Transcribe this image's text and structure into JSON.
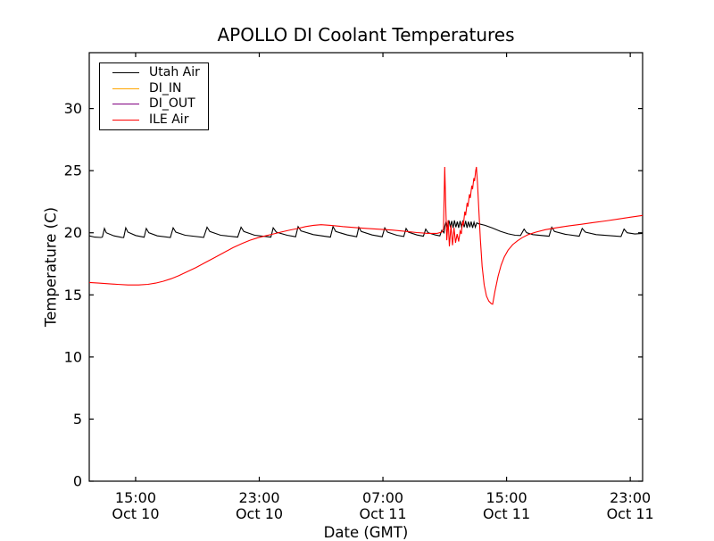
{
  "chart_data": {
    "type": "line",
    "title": "APOLLO DI Coolant Temperatures",
    "xlabel": "Date (GMT)",
    "ylabel": "Temperature (C)",
    "grid": false,
    "legend_position": "upper left",
    "background_color": "#ffffff",
    "axis_color": "#000000",
    "ylim": [
      0,
      34.5
    ],
    "y_ticks": [
      0,
      5,
      10,
      15,
      20,
      25,
      30
    ],
    "xlim_hours": [
      0,
      35.8
    ],
    "x_ticks": [
      {
        "hour": 3,
        "time": "15:00",
        "date": "Oct 10"
      },
      {
        "hour": 11,
        "time": "23:00",
        "date": "Oct 10"
      },
      {
        "hour": 19,
        "time": "07:00",
        "date": "Oct 11"
      },
      {
        "hour": 27,
        "time": "15:00",
        "date": "Oct 11"
      },
      {
        "hour": 35,
        "time": "23:00",
        "date": "Oct 11"
      }
    ],
    "x_hours_origin": "Oct 10 12:00 GMT",
    "series": [
      {
        "name": "Utah Air",
        "color": "#000000",
        "points": [
          [
            0,
            19.75
          ],
          [
            0.35,
            19.65
          ],
          [
            0.75,
            19.62
          ],
          [
            0.85,
            19.65
          ],
          [
            0.98,
            20.35
          ],
          [
            1.1,
            20.0
          ],
          [
            1.6,
            19.75
          ],
          [
            2.1,
            19.63
          ],
          [
            2.23,
            19.62
          ],
          [
            2.36,
            20.4
          ],
          [
            2.5,
            20.05
          ],
          [
            3.0,
            19.78
          ],
          [
            3.55,
            19.64
          ],
          [
            3.69,
            20.35
          ],
          [
            3.85,
            20.0
          ],
          [
            4.4,
            19.75
          ],
          [
            5.25,
            19.62
          ],
          [
            5.43,
            20.4
          ],
          [
            5.6,
            20.05
          ],
          [
            6.2,
            19.8
          ],
          [
            7.4,
            19.63
          ],
          [
            7.62,
            20.45
          ],
          [
            7.8,
            20.1
          ],
          [
            8.5,
            19.8
          ],
          [
            9.6,
            19.65
          ],
          [
            9.82,
            20.45
          ],
          [
            10.0,
            20.1
          ],
          [
            10.7,
            19.8
          ],
          [
            11.75,
            19.65
          ],
          [
            11.9,
            20.4
          ],
          [
            12.1,
            20.05
          ],
          [
            12.8,
            19.8
          ],
          [
            13.35,
            19.68
          ],
          [
            13.51,
            20.5
          ],
          [
            13.7,
            20.15
          ],
          [
            14.5,
            19.85
          ],
          [
            15.6,
            19.65
          ],
          [
            15.77,
            20.5
          ],
          [
            15.95,
            20.1
          ],
          [
            16.7,
            19.82
          ],
          [
            17.3,
            19.68
          ],
          [
            17.44,
            20.45
          ],
          [
            17.6,
            20.1
          ],
          [
            18.3,
            19.82
          ],
          [
            18.95,
            19.68
          ],
          [
            19.12,
            20.4
          ],
          [
            19.3,
            20.05
          ],
          [
            19.9,
            19.8
          ],
          [
            20.35,
            19.7
          ],
          [
            20.5,
            20.35
          ],
          [
            20.65,
            20.05
          ],
          [
            21.2,
            19.82
          ],
          [
            21.62,
            19.72
          ],
          [
            21.77,
            20.3
          ],
          [
            21.92,
            20.0
          ],
          [
            22.4,
            19.82
          ],
          [
            22.68,
            19.75
          ],
          [
            22.81,
            20.2
          ],
          [
            22.95,
            20.0
          ],
          [
            23.0,
            20.5
          ],
          [
            23.09,
            20.9
          ],
          [
            23.18,
            20.4
          ],
          [
            23.27,
            21.0
          ],
          [
            23.36,
            20.45
          ],
          [
            23.45,
            20.95
          ],
          [
            23.54,
            20.4
          ],
          [
            23.63,
            21.0
          ],
          [
            23.72,
            20.45
          ],
          [
            23.81,
            20.9
          ],
          [
            23.9,
            20.4
          ],
          [
            23.99,
            20.95
          ],
          [
            24.08,
            20.5
          ],
          [
            24.17,
            20.9
          ],
          [
            24.26,
            20.45
          ],
          [
            24.35,
            20.95
          ],
          [
            24.44,
            20.4
          ],
          [
            24.53,
            20.9
          ],
          [
            24.62,
            20.45
          ],
          [
            24.71,
            20.9
          ],
          [
            24.8,
            20.4
          ],
          [
            24.89,
            20.85
          ],
          [
            24.98,
            20.45
          ],
          [
            25.07,
            20.8
          ],
          [
            25.2,
            20.72
          ],
          [
            25.6,
            20.6
          ],
          [
            26.1,
            20.38
          ],
          [
            26.6,
            20.12
          ],
          [
            27.1,
            19.92
          ],
          [
            27.55,
            19.8
          ],
          [
            27.9,
            19.78
          ],
          [
            28.13,
            20.3
          ],
          [
            28.3,
            20.0
          ],
          [
            28.7,
            19.85
          ],
          [
            29.75,
            19.72
          ],
          [
            29.92,
            20.45
          ],
          [
            30.1,
            20.1
          ],
          [
            30.8,
            19.88
          ],
          [
            31.7,
            19.72
          ],
          [
            31.89,
            20.35
          ],
          [
            32.1,
            20.05
          ],
          [
            32.8,
            19.85
          ],
          [
            34.4,
            19.7
          ],
          [
            34.6,
            20.3
          ],
          [
            34.8,
            20.0
          ],
          [
            35.3,
            19.9
          ],
          [
            35.8,
            19.95
          ]
        ]
      },
      {
        "name": "DI_IN",
        "color": "#ffa500",
        "points": []
      },
      {
        "name": "DI_OUT",
        "color": "#800080",
        "points": []
      },
      {
        "name": "ILE Air",
        "color": "#ff0000",
        "points": [
          [
            0,
            16.0
          ],
          [
            0.6,
            15.95
          ],
          [
            1.2,
            15.9
          ],
          [
            1.8,
            15.85
          ],
          [
            2.5,
            15.8
          ],
          [
            3.2,
            15.8
          ],
          [
            3.8,
            15.85
          ],
          [
            4.3,
            15.95
          ],
          [
            4.8,
            16.1
          ],
          [
            5.3,
            16.3
          ],
          [
            5.8,
            16.55
          ],
          [
            6.3,
            16.85
          ],
          [
            6.9,
            17.2
          ],
          [
            7.5,
            17.6
          ],
          [
            8.1,
            18.0
          ],
          [
            8.7,
            18.4
          ],
          [
            9.3,
            18.8
          ],
          [
            9.9,
            19.15
          ],
          [
            10.4,
            19.4
          ],
          [
            10.9,
            19.6
          ],
          [
            11.4,
            19.75
          ],
          [
            11.9,
            19.9
          ],
          [
            12.4,
            20.05
          ],
          [
            12.9,
            20.2
          ],
          [
            13.5,
            20.35
          ],
          [
            14.0,
            20.5
          ],
          [
            14.5,
            20.6
          ],
          [
            15.0,
            20.65
          ],
          [
            15.6,
            20.6
          ],
          [
            16.4,
            20.5
          ],
          [
            17.2,
            20.42
          ],
          [
            18.0,
            20.35
          ],
          [
            18.8,
            20.28
          ],
          [
            19.6,
            20.22
          ],
          [
            20.4,
            20.12
          ],
          [
            21.2,
            20.02
          ],
          [
            21.9,
            19.95
          ],
          [
            22.5,
            19.95
          ],
          [
            22.8,
            20.05
          ],
          [
            22.92,
            20.3
          ],
          [
            23.0,
            25.3
          ],
          [
            23.08,
            21.5
          ],
          [
            23.13,
            19.4
          ],
          [
            23.22,
            21.0
          ],
          [
            23.3,
            18.9
          ],
          [
            23.4,
            20.6
          ],
          [
            23.5,
            19.0
          ],
          [
            23.6,
            20.4
          ],
          [
            23.7,
            19.2
          ],
          [
            23.8,
            19.9
          ],
          [
            23.9,
            19.3
          ],
          [
            24.0,
            20.15
          ],
          [
            24.07,
            19.9
          ],
          [
            24.15,
            20.9
          ],
          [
            24.2,
            20.6
          ],
          [
            24.3,
            21.7
          ],
          [
            24.35,
            21.4
          ],
          [
            24.45,
            22.4
          ],
          [
            24.5,
            22.1
          ],
          [
            24.6,
            23.1
          ],
          [
            24.65,
            22.8
          ],
          [
            24.75,
            23.8
          ],
          [
            24.8,
            23.5
          ],
          [
            24.88,
            24.4
          ],
          [
            24.93,
            24.15
          ],
          [
            25.0,
            25.0
          ],
          [
            25.05,
            25.3
          ],
          [
            25.12,
            24.0
          ],
          [
            25.2,
            22.0
          ],
          [
            25.3,
            19.5
          ],
          [
            25.42,
            17.3
          ],
          [
            25.55,
            15.8
          ],
          [
            25.7,
            14.9
          ],
          [
            25.85,
            14.5
          ],
          [
            26.0,
            14.3
          ],
          [
            26.1,
            14.25
          ],
          [
            26.25,
            15.3
          ],
          [
            26.45,
            16.5
          ],
          [
            26.65,
            17.4
          ],
          [
            26.85,
            18.05
          ],
          [
            27.1,
            18.6
          ],
          [
            27.4,
            19.05
          ],
          [
            27.7,
            19.35
          ],
          [
            28.0,
            19.6
          ],
          [
            28.4,
            19.85
          ],
          [
            28.9,
            20.05
          ],
          [
            29.5,
            20.25
          ],
          [
            30.2,
            20.4
          ],
          [
            31.0,
            20.55
          ],
          [
            31.8,
            20.68
          ],
          [
            32.6,
            20.82
          ],
          [
            33.4,
            20.95
          ],
          [
            34.2,
            21.1
          ],
          [
            35.0,
            21.25
          ],
          [
            35.8,
            21.4
          ]
        ]
      }
    ]
  }
}
